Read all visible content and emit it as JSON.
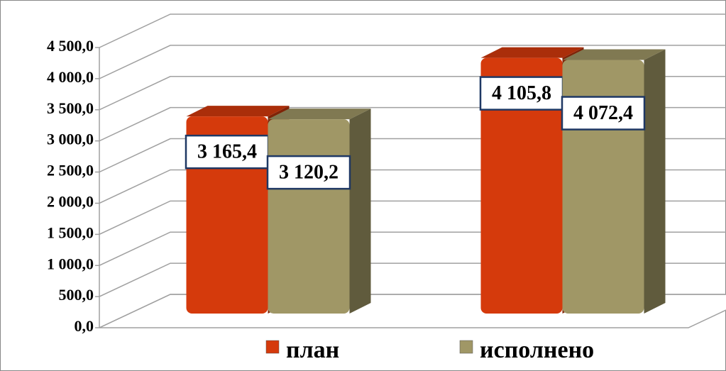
{
  "chart_data": {
    "type": "bar3d",
    "categories": [
      null,
      null
    ],
    "series": [
      {
        "name": "план",
        "color": "#d53a0c",
        "values": [
          3165.4,
          4105.8
        ],
        "value_labels": [
          "3 165,4",
          "4 105,8"
        ]
      },
      {
        "name": "исполнено",
        "color": "#a09766",
        "values": [
          3120.2,
          4072.4
        ],
        "value_labels": [
          "3 120,2",
          "4 072,4"
        ]
      }
    ],
    "ylim": [
      0,
      4500
    ],
    "yticks": [
      {
        "value": 0,
        "label": "0,0"
      },
      {
        "value": 500,
        "label": "500,0"
      },
      {
        "value": 1000,
        "label": "1 000,0"
      },
      {
        "value": 1500,
        "label": "1 500,0"
      },
      {
        "value": 2000,
        "label": "2 000,0"
      },
      {
        "value": 2500,
        "label": "2 500,0"
      },
      {
        "value": 3000,
        "label": "3 000,0"
      },
      {
        "value": 3500,
        "label": "3 500,0"
      },
      {
        "value": 4000,
        "label": "4 000,0"
      },
      {
        "value": 4500,
        "label": "4 500,0"
      }
    ],
    "grid": true,
    "legend": "bottom"
  }
}
